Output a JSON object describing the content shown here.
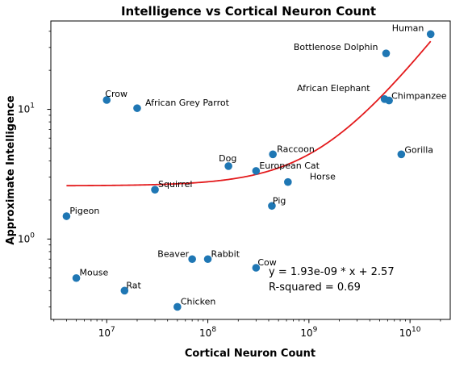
{
  "chart_data": {
    "type": "scatter",
    "title": "Intelligence vs Cortical Neuron Count",
    "xlabel": "Cortical Neuron Count",
    "ylabel": "Approximate Intelligence",
    "xscale": "log",
    "yscale": "log",
    "xlim": [
      2800000,
      25000000000
    ],
    "ylim": [
      0.24,
      48
    ],
    "x_ticks": [
      {
        "value": 10000000,
        "base": "10",
        "exp": "7"
      },
      {
        "value": 100000000,
        "base": "10",
        "exp": "8"
      },
      {
        "value": 1000000000,
        "base": "10",
        "exp": "9"
      },
      {
        "value": 10000000000,
        "base": "10",
        "exp": "10"
      }
    ],
    "y_ticks": [
      {
        "value": 1,
        "base": "10",
        "exp": "0"
      },
      {
        "value": 10,
        "base": "10",
        "exp": "1"
      }
    ],
    "grid": false,
    "point_color": "#1f77b4",
    "fit_color": "#e31a1c",
    "points": [
      {
        "label": "Human",
        "x": 16000000000,
        "y": 38
      },
      {
        "label": "Bottlenose Dolphin",
        "x": 5800000000,
        "y": 27
      },
      {
        "label": "African Elephant",
        "x": 5600000000,
        "y": 12
      },
      {
        "label": "Chimpanzee",
        "x": 6200000000,
        "y": 11.7
      },
      {
        "label": "Gorilla",
        "x": 8200000000,
        "y": 4.5
      },
      {
        "label": "Crow",
        "x": 10000000,
        "y": 11.8
      },
      {
        "label": "African Grey Parrot",
        "x": 20000000,
        "y": 10.2
      },
      {
        "label": "Raccoon",
        "x": 440000000,
        "y": 4.5
      },
      {
        "label": "Dog",
        "x": 160000000,
        "y": 3.65
      },
      {
        "label": "European Cat",
        "x": 300000000,
        "y": 3.35
      },
      {
        "label": "Horse",
        "x": 620000000,
        "y": 2.75
      },
      {
        "label": "Squirrel",
        "x": 30000000,
        "y": 2.4
      },
      {
        "label": "Pig",
        "x": 430000000,
        "y": 1.8
      },
      {
        "label": "Pigeon",
        "x": 4000000,
        "y": 1.5
      },
      {
        "label": "Beaver",
        "x": 70000000,
        "y": 0.7
      },
      {
        "label": "Rabbit",
        "x": 100000000,
        "y": 0.7
      },
      {
        "label": "Cow",
        "x": 300000000,
        "y": 0.6
      },
      {
        "label": "Mouse",
        "x": 5000000,
        "y": 0.5
      },
      {
        "label": "Rat",
        "x": 15000000,
        "y": 0.4
      },
      {
        "label": "Chicken",
        "x": 50000000,
        "y": 0.3
      }
    ],
    "fit": {
      "slope": 1.93e-09,
      "intercept": 2.57
    },
    "annotations": [
      "y = 1.93e-09 * x + 2.57",
      "R-squared = 0.69"
    ]
  }
}
